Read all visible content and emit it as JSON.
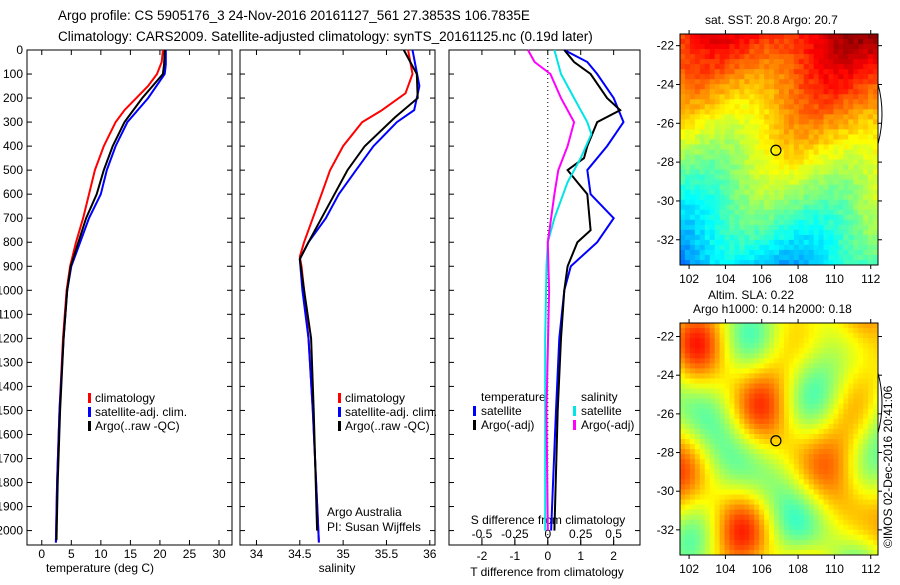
{
  "title": {
    "line1": "Argo profile: CS 5905176_3 24-Nov-2016 20161127_561 27.3853S 106.7835E",
    "line2": "Climatology: CARS2009. Satellite-adjusted climatology: synTS_20161125.nc (0.19d later)"
  },
  "footer_text": "©IMOS 02-Dec-2016 20:41:06",
  "colors": {
    "climatology": "#ff0000",
    "satellite": "#0000ff",
    "argo": "#000000",
    "sal_satellite": "#00e5e5",
    "sal_argo": "#ff00ff"
  },
  "chart_data": [
    {
      "type": "line",
      "xlabel": "temperature (deg C)",
      "xlim": [
        -2.5,
        32.2
      ],
      "ylim": [
        0,
        2060
      ],
      "xticks": [
        0,
        5,
        10,
        15,
        20,
        25,
        30
      ],
      "yticks": [
        0,
        100,
        200,
        300,
        400,
        500,
        600,
        700,
        800,
        900,
        1000,
        1100,
        1200,
        1300,
        1400,
        1500,
        1600,
        1700,
        1800,
        1900,
        2000
      ],
      "legend": [
        "climatology",
        "satellite-adj. clim.",
        "Argo(..raw -QC)"
      ],
      "series": [
        {
          "name": "climatology",
          "color": "#ff0000",
          "points": [
            [
              20.5,
              0
            ],
            [
              20.3,
              50
            ],
            [
              19.5,
              100
            ],
            [
              18,
              150
            ],
            [
              16,
              200
            ],
            [
              14,
              250
            ],
            [
              12.5,
              300
            ],
            [
              10.5,
              400
            ],
            [
              9,
              500
            ],
            [
              8,
              600
            ],
            [
              7,
              700
            ],
            [
              5.8,
              800
            ],
            [
              4.8,
              900
            ],
            [
              4.2,
              1000
            ],
            [
              3.6,
              1200
            ],
            [
              3,
              1500
            ],
            [
              2.6,
              1800
            ],
            [
              2.4,
              2050
            ]
          ]
        },
        {
          "name": "satellite-adj. clim.",
          "color": "#0000ff",
          "points": [
            [
              21,
              0
            ],
            [
              21,
              60
            ],
            [
              20.8,
              100
            ],
            [
              18,
              200
            ],
            [
              14.5,
              300
            ],
            [
              12.5,
              400
            ],
            [
              11,
              500
            ],
            [
              10,
              600
            ],
            [
              8,
              700
            ],
            [
              6.5,
              800
            ],
            [
              5,
              900
            ],
            [
              4.3,
              1000
            ],
            [
              3.7,
              1200
            ],
            [
              3,
              1500
            ],
            [
              2.6,
              1800
            ],
            [
              2.4,
              2050
            ]
          ]
        },
        {
          "name": "Argo(..raw -QC)",
          "color": "#000000",
          "points": [
            [
              20.8,
              0
            ],
            [
              20.7,
              60
            ],
            [
              20.5,
              100
            ],
            [
              17,
              200
            ],
            [
              14,
              300
            ],
            [
              12,
              400
            ],
            [
              10.5,
              500
            ],
            [
              9.3,
              600
            ],
            [
              7.5,
              700
            ],
            [
              6.2,
              800
            ],
            [
              4.9,
              900
            ],
            [
              4.3,
              1000
            ],
            [
              3.7,
              1200
            ],
            [
              3.1,
              1500
            ],
            [
              2.7,
              1800
            ],
            [
              2.5,
              2040
            ]
          ]
        }
      ]
    },
    {
      "type": "line",
      "xlabel": "salinity",
      "xlim": [
        33.81,
        36.06
      ],
      "ylim": [
        0,
        2060
      ],
      "xticks": [
        34,
        34.5,
        35,
        35.5,
        36
      ],
      "legend": [
        "climatology",
        "satellite-adj. clim.",
        "Argo(..raw -QC)"
      ],
      "annotation": [
        "Argo Australia",
        "PI: Susan Wijffels"
      ],
      "series": [
        {
          "name": "climatology",
          "color": "#ff0000",
          "points": [
            [
              35.75,
              0
            ],
            [
              35.8,
              100
            ],
            [
              35.72,
              180
            ],
            [
              35.45,
              250
            ],
            [
              35.22,
              300
            ],
            [
              35.0,
              400
            ],
            [
              34.85,
              500
            ],
            [
              34.75,
              600
            ],
            [
              34.65,
              700
            ],
            [
              34.55,
              800
            ],
            [
              34.5,
              860
            ],
            [
              34.52,
              900
            ],
            [
              34.55,
              1000
            ],
            [
              34.6,
              1200
            ],
            [
              34.65,
              1500
            ],
            [
              34.72,
              2050
            ]
          ]
        },
        {
          "name": "satellite-adj. clim.",
          "color": "#0000ff",
          "points": [
            [
              35.8,
              0
            ],
            [
              35.88,
              150
            ],
            [
              35.82,
              250
            ],
            [
              35.62,
              300
            ],
            [
              35.35,
              400
            ],
            [
              35.15,
              500
            ],
            [
              34.95,
              600
            ],
            [
              34.8,
              700
            ],
            [
              34.6,
              800
            ],
            [
              34.5,
              870
            ],
            [
              34.53,
              1000
            ],
            [
              34.6,
              1200
            ],
            [
              34.65,
              1500
            ],
            [
              34.72,
              2050
            ]
          ]
        },
        {
          "name": "Argo(..raw -QC)",
          "color": "#000000",
          "points": [
            [
              35.7,
              0
            ],
            [
              35.85,
              100
            ],
            [
              35.86,
              200
            ],
            [
              35.6,
              280
            ],
            [
              35.25,
              400
            ],
            [
              35.05,
              500
            ],
            [
              34.9,
              600
            ],
            [
              34.75,
              700
            ],
            [
              34.6,
              800
            ],
            [
              34.5,
              870
            ],
            [
              34.55,
              1000
            ],
            [
              34.63,
              1200
            ],
            [
              34.66,
              1500
            ],
            [
              34.7,
              2000
            ]
          ]
        }
      ]
    },
    {
      "type": "line",
      "xlabel": "T difference from climatology",
      "x2label": "S difference from climatology",
      "xlim": [
        -3.0,
        2.8
      ],
      "xticks": [
        -2,
        -1,
        0,
        1,
        2
      ],
      "x2ticks": [
        -0.5,
        -0.25,
        0,
        0.25,
        0.5
      ],
      "x2tick_labels": [
        "-0.5",
        "-0.25",
        "0",
        "0.25",
        "0.5"
      ],
      "legend": {
        "temperature_header": "temperature",
        "salinity_header": "salinity",
        "t_sat": "satellite",
        "t_argo": "Argo(-adj)",
        "s_sat": "satellite",
        "s_argo": "Argo(-adj)"
      },
      "series": [
        {
          "name": "T satellite",
          "axis": "T",
          "color": "#0000ff",
          "points": [
            [
              0.5,
              0
            ],
            [
              1.2,
              50
            ],
            [
              1.5,
              100
            ],
            [
              2.0,
              200
            ],
            [
              2.3,
              300
            ],
            [
              1.8,
              400
            ],
            [
              1.2,
              500
            ],
            [
              1.3,
              600
            ],
            [
              2.0,
              700
            ],
            [
              1.5,
              800
            ],
            [
              0.7,
              900
            ],
            [
              0.5,
              1000
            ],
            [
              0.35,
              1200
            ],
            [
              0.25,
              1500
            ],
            [
              0.1,
              2000
            ]
          ]
        },
        {
          "name": "T Argo(-adj)",
          "axis": "T",
          "color": "#000000",
          "points": [
            [
              0.5,
              0
            ],
            [
              0.8,
              50
            ],
            [
              1.3,
              100
            ],
            [
              1.8,
              200
            ],
            [
              2.2,
              250
            ],
            [
              1.5,
              300
            ],
            [
              1.2,
              400
            ],
            [
              1.1,
              450
            ],
            [
              0.6,
              500
            ],
            [
              0.9,
              550
            ],
            [
              1.2,
              600
            ],
            [
              1.3,
              750
            ],
            [
              0.9,
              800
            ],
            [
              0.6,
              900
            ],
            [
              0.5,
              1000
            ],
            [
              0.4,
              1200
            ],
            [
              0.3,
              1500
            ],
            [
              0.2,
              2000
            ]
          ]
        },
        {
          "name": "S satellite",
          "axis": "S",
          "color": "#00e5e5",
          "points": [
            [
              0.05,
              0
            ],
            [
              0.1,
              100
            ],
            [
              0.2,
              200
            ],
            [
              0.3,
              300
            ],
            [
              0.33,
              350
            ],
            [
              0.25,
              450
            ],
            [
              0.15,
              550
            ],
            [
              0.05,
              700
            ],
            [
              0.0,
              800
            ],
            [
              -0.01,
              900
            ],
            [
              -0.02,
              1200
            ],
            [
              -0.02,
              2000
            ]
          ]
        },
        {
          "name": "S Argo(-adj)",
          "axis": "S",
          "color": "#ff00ff",
          "points": [
            [
              -0.15,
              0
            ],
            [
              -0.1,
              50
            ],
            [
              0.02,
              100
            ],
            [
              0.1,
              200
            ],
            [
              0.2,
              300
            ],
            [
              0.15,
              400
            ],
            [
              0.08,
              500
            ],
            [
              0.05,
              600
            ],
            [
              0.0,
              800
            ],
            [
              0.01,
              1000
            ],
            [
              -0.01,
              1500
            ],
            [
              0.0,
              2000
            ]
          ]
        }
      ]
    },
    {
      "type": "heatmap",
      "title": "sat. SST: 20.8  Argo: 20.7",
      "xlim": [
        101.5,
        112.4
      ],
      "ylim": [
        -33.3,
        -21.4
      ],
      "xticks": [
        102,
        104,
        106,
        108,
        110,
        112
      ],
      "yticks": [
        -22,
        -24,
        -26,
        -28,
        -30,
        -32
      ],
      "marker": [
        106.78,
        -27.39
      ]
    },
    {
      "type": "heatmap",
      "title": "Altim. SLA: 0.22",
      "subtitle": "Argo h1000: 0.14 h2000: 0.18",
      "xlim": [
        101.5,
        112.4
      ],
      "ylim": [
        -33.3,
        -21.3
      ],
      "xticks": [
        102,
        104,
        106,
        108,
        110,
        112
      ],
      "yticks": [
        -22,
        -24,
        -26,
        -28,
        -30,
        -32
      ],
      "marker": [
        106.78,
        -27.39
      ]
    }
  ]
}
